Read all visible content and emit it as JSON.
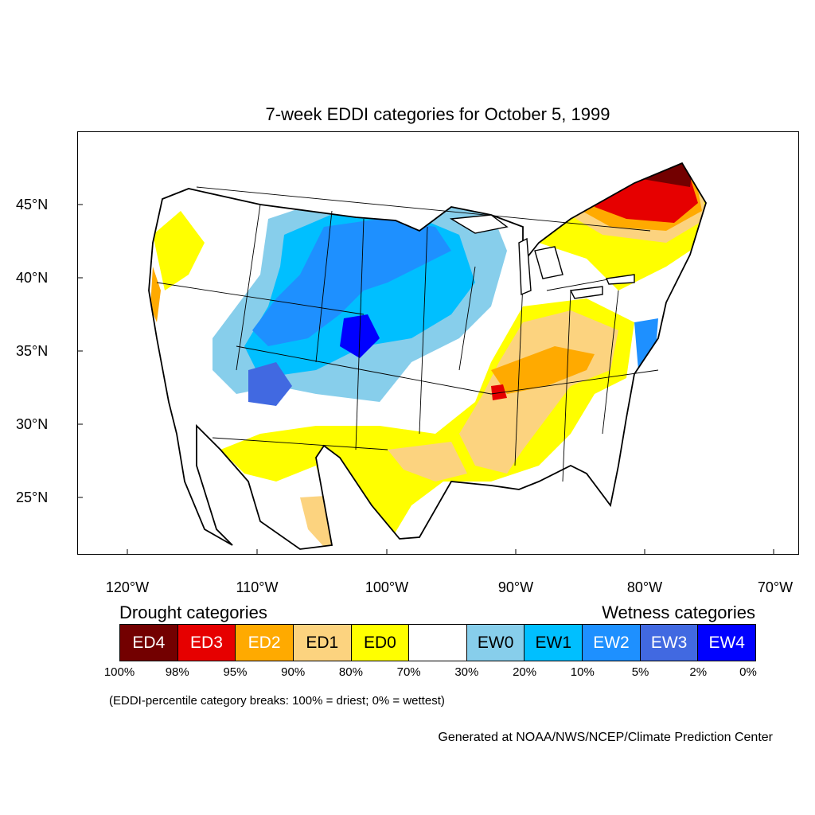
{
  "title": "7-week EDDI categories for October 5, 1999",
  "lat_labels": [
    "45°N",
    "40°N",
    "35°N",
    "30°N",
    "25°N"
  ],
  "lon_labels": [
    "120°W",
    "110°W",
    "100°W",
    "90°W",
    "80°W",
    "70°W"
  ],
  "legend": {
    "drought_heading": "Drought categories",
    "wetness_heading": "Wetness categories",
    "categories": [
      {
        "label": "ED4",
        "color": "#730000",
        "text_color": "#ffffff"
      },
      {
        "label": "ED3",
        "color": "#e60000",
        "text_color": "#ffffff"
      },
      {
        "label": "ED2",
        "color": "#ffaa00",
        "text_color": "#ffffff"
      },
      {
        "label": "ED1",
        "color": "#fcd37f",
        "text_color": "#000000"
      },
      {
        "label": "ED0",
        "color": "#ffff00",
        "text_color": "#000000"
      },
      {
        "label": "",
        "color": "#ffffff",
        "text_color": "#000000"
      },
      {
        "label": "EW0",
        "color": "#87ceeb",
        "text_color": "#000000"
      },
      {
        "label": "EW1",
        "color": "#00bfff",
        "text_color": "#000000"
      },
      {
        "label": "EW2",
        "color": "#1e90ff",
        "text_color": "#ffffff"
      },
      {
        "label": "EW3",
        "color": "#4169e1",
        "text_color": "#ffffff"
      },
      {
        "label": "EW4",
        "color": "#0000ff",
        "text_color": "#ffffff"
      }
    ],
    "breaks": [
      "100%",
      "98%",
      "95%",
      "90%",
      "80%",
      "70%",
      "30%",
      "20%",
      "10%",
      "5%",
      "2%",
      "0%"
    ]
  },
  "note": "(EDDI-percentile category breaks: 100% = driest; 0% = wettest)",
  "credit": "Generated at NOAA/NWS/NCEP/Climate Prediction Center"
}
